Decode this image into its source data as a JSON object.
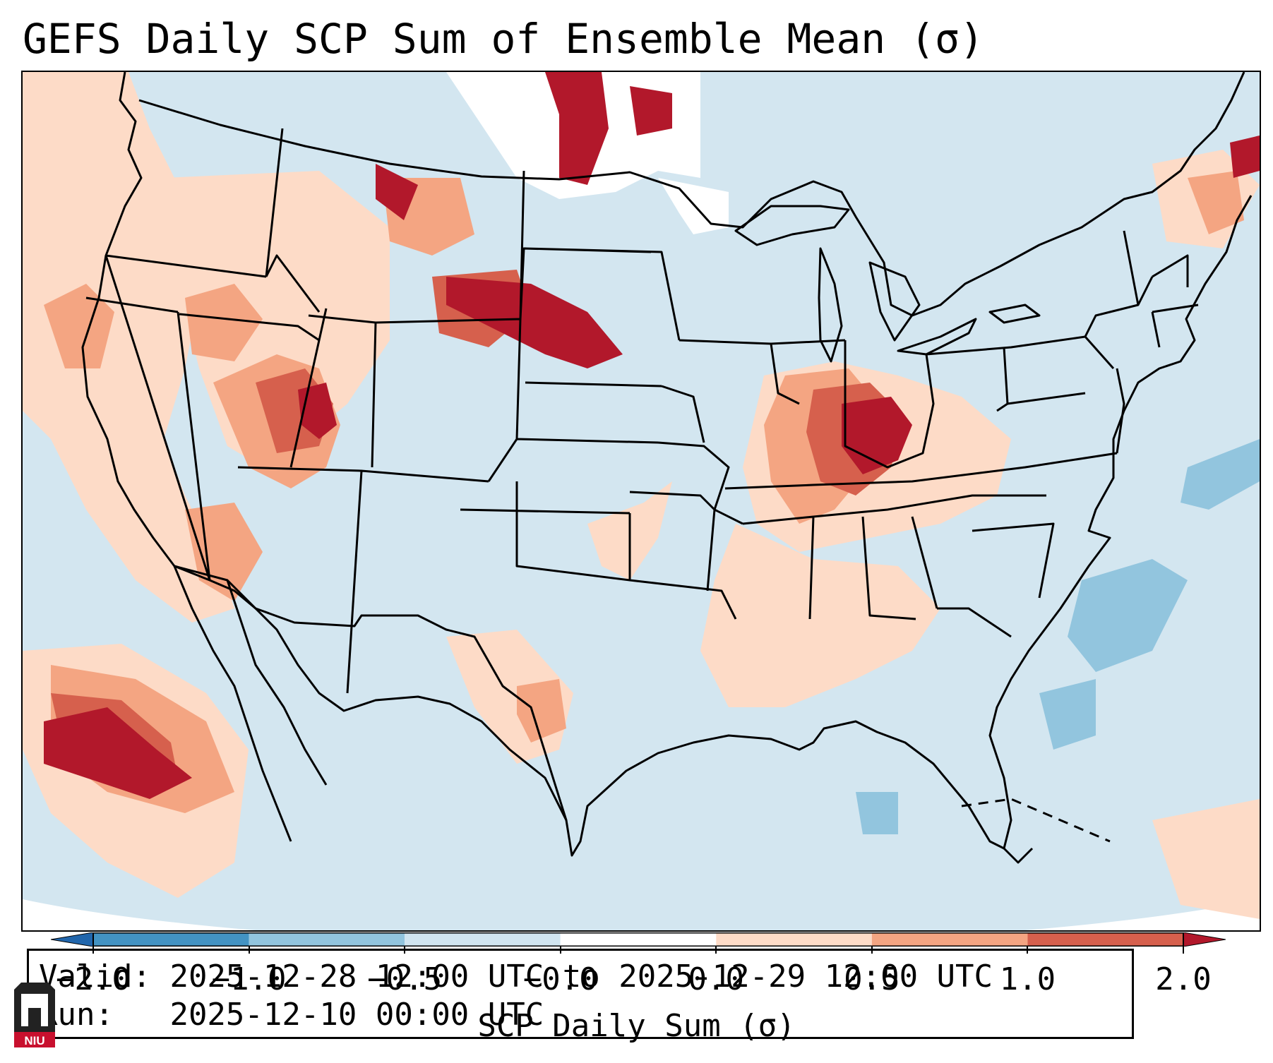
{
  "title": "GEFS Daily SCP Sum of Ensemble Mean (σ)",
  "info": {
    "valid_label": "Valid:",
    "valid_value": "2025-12-28 12:00 UTC to 2025-12-29 12:00 UTC",
    "run_label": "Run:",
    "run_value": "2025-12-10 00:00 UTC"
  },
  "colorbar": {
    "label": "SCP Daily Sum (σ)",
    "ticks": [
      "−2.0",
      "−1.0",
      "−0.5",
      "−0.0",
      "0.0",
      "0.5",
      "1.0",
      "2.0"
    ],
    "bins": [
      {
        "range": "< -2.0",
        "color": "#2166ac"
      },
      {
        "range": "-2.0 to -1.0",
        "color": "#4393c3"
      },
      {
        "range": "-1.0 to -0.5",
        "color": "#92c5de"
      },
      {
        "range": "-0.5 to -0.0",
        "color": "#d1e5f0"
      },
      {
        "range": "-0.0 to 0.0",
        "color": "#ffffff"
      },
      {
        "range": "0.0 to 0.5",
        "color": "#fddbc7"
      },
      {
        "range": "0.5 to 1.0",
        "color": "#f4a582"
      },
      {
        "range": "1.0 to 2.0",
        "color": "#d6604d"
      },
      {
        "range": "> 2.0",
        "color": "#b2182b"
      }
    ]
  },
  "map": {
    "region": "Continental United States",
    "background_category": "-0.5 to -0.0",
    "highlight_regions": [
      {
        "name": "Ohio Valley / Indiana",
        "category": "> 2.0"
      },
      {
        "name": "Northern Plains / Montana-Dakotas",
        "category": "> 2.0"
      },
      {
        "name": "Idaho / Utah",
        "category": "1.0 to 2.0"
      },
      {
        "name": "Eastern Pacific",
        "category": "> 2.0"
      },
      {
        "name": "Western Atlantic",
        "category": "-1.0 to -0.5"
      }
    ]
  },
  "logo": {
    "text": "NIU",
    "color": "#c8102e"
  }
}
